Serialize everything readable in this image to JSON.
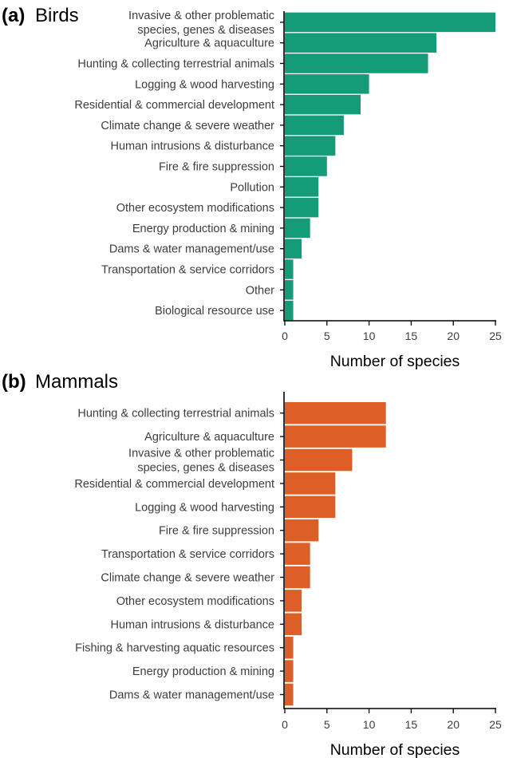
{
  "chart_data": [
    {
      "type": "bar",
      "orientation": "horizontal",
      "panel": "(a)",
      "title": "Birds",
      "color": "#149c78",
      "xlabel": "Number of species",
      "ylabel": "",
      "xlim": [
        0,
        25
      ],
      "xticks": [
        0,
        5,
        10,
        15,
        20,
        25
      ],
      "categories": [
        [
          "Invasive & other problematic",
          "species, genes & diseases"
        ],
        [
          "Agriculture & aquaculture"
        ],
        [
          "Hunting & collecting terrestrial animals"
        ],
        [
          "Logging & wood harvesting"
        ],
        [
          "Residential & commercial development"
        ],
        [
          "Climate change & severe weather"
        ],
        [
          "Human intrusions & disturbance"
        ],
        [
          "Fire & fire suppression"
        ],
        [
          "Pollution"
        ],
        [
          "Other ecosystem modifications"
        ],
        [
          "Energy production & mining"
        ],
        [
          "Dams & water management/use"
        ],
        [
          "Transportation & service corridors"
        ],
        [
          "Other"
        ],
        [
          "Biological resource use"
        ]
      ],
      "values": [
        25,
        18,
        17,
        10,
        9,
        7,
        6,
        5,
        4,
        4,
        3,
        2,
        1,
        1,
        1
      ]
    },
    {
      "type": "bar",
      "orientation": "horizontal",
      "panel": "(b)",
      "title": "Mammals",
      "color": "#db5f26",
      "xlabel": "Number of species",
      "ylabel": "",
      "xlim": [
        0,
        25
      ],
      "xticks": [
        0,
        5,
        10,
        15,
        20,
        25
      ],
      "categories": [
        [
          "Hunting & collecting terrestrial animals"
        ],
        [
          "Agriculture & aquaculture"
        ],
        [
          "Invasive & other problematic",
          "species, genes & diseases"
        ],
        [
          "Residential & commercial development"
        ],
        [
          "Logging & wood harvesting"
        ],
        [
          "Fire & fire suppression"
        ],
        [
          "Transportation & service corridors"
        ],
        [
          "Climate change & severe weather"
        ],
        [
          "Other ecosystem modifications"
        ],
        [
          "Human intrusions & disturbance"
        ],
        [
          "Fishing & harvesting aquatic resources"
        ],
        [
          "Energy production & mining"
        ],
        [
          "Dams & water management/use"
        ]
      ],
      "values": [
        12,
        12,
        8,
        6,
        6,
        4,
        3,
        3,
        2,
        2,
        1,
        1,
        1
      ]
    }
  ]
}
